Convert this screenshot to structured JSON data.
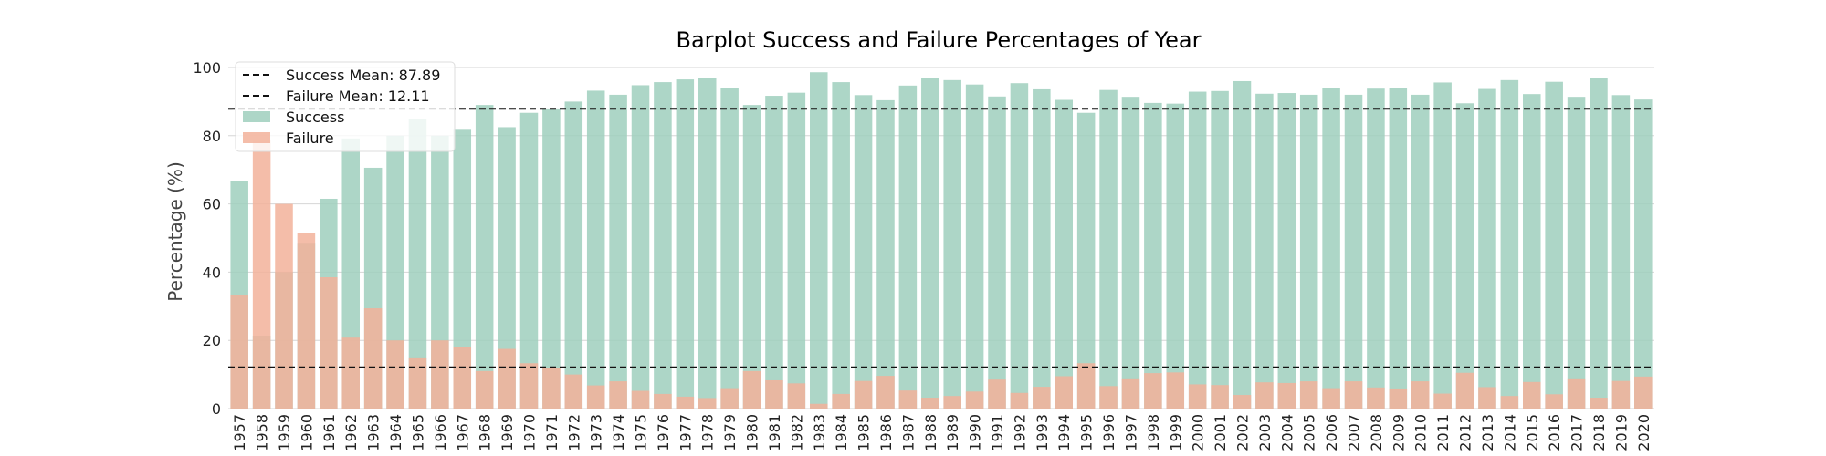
{
  "chart_data": {
    "type": "bar",
    "title": "Barplot Success and Failure Percentages of Year",
    "xlabel": "",
    "ylabel": "Percentage (%)",
    "ylim": [
      0,
      100
    ],
    "yticks": [
      "0",
      "20",
      "40",
      "60",
      "80",
      "100"
    ],
    "grid": true,
    "legend_position": "top-left",
    "colors": {
      "success": "#9fcfbd",
      "failure": "#f2b19a"
    },
    "categories": [
      "1957",
      "1958",
      "1959",
      "1960",
      "1961",
      "1962",
      "1963",
      "1964",
      "1965",
      "1966",
      "1967",
      "1968",
      "1969",
      "1970",
      "1971",
      "1972",
      "1973",
      "1974",
      "1975",
      "1976",
      "1977",
      "1978",
      "1979",
      "1980",
      "1981",
      "1982",
      "1983",
      "1984",
      "1985",
      "1986",
      "1987",
      "1988",
      "1989",
      "1990",
      "1991",
      "1992",
      "1993",
      "1994",
      "1995",
      "1996",
      "1997",
      "1998",
      "1999",
      "2000",
      "2001",
      "2002",
      "2003",
      "2004",
      "2005",
      "2006",
      "2007",
      "2008",
      "2009",
      "2010",
      "2011",
      "2012",
      "2013",
      "2014",
      "2015",
      "2016",
      "2017",
      "2018",
      "2019",
      "2020"
    ],
    "series": [
      {
        "name": "Success",
        "values": [
          66.7,
          21.4,
          40.0,
          48.6,
          61.5,
          79.2,
          70.6,
          80.0,
          85.0,
          80.0,
          82.0,
          89.0,
          82.5,
          86.7,
          88.0,
          90.0,
          93.2,
          92.0,
          94.8,
          95.7,
          96.5,
          96.9,
          94.0,
          89.0,
          91.7,
          92.6,
          98.6,
          95.7,
          91.9,
          90.4,
          94.7,
          96.8,
          96.3,
          95.0,
          91.5,
          95.4,
          93.6,
          90.5,
          86.7,
          93.4,
          91.4,
          89.6,
          89.4,
          92.9,
          93.1,
          96.0,
          92.3,
          92.5,
          92.0,
          94.0,
          92.0,
          93.8,
          94.1,
          92.0,
          95.6,
          89.5,
          93.7,
          96.3,
          92.2,
          95.8,
          91.4,
          96.8,
          91.9,
          90.6
        ]
      },
      {
        "name": "Failure",
        "values": [
          33.3,
          78.6,
          60.0,
          51.4,
          38.5,
          20.8,
          29.4,
          20.0,
          15.0,
          20.0,
          18.0,
          11.0,
          17.5,
          13.3,
          12.0,
          10.0,
          6.8,
          8.0,
          5.2,
          4.3,
          3.5,
          3.1,
          6.0,
          11.0,
          8.3,
          7.4,
          1.4,
          4.3,
          8.1,
          9.6,
          5.3,
          3.2,
          3.7,
          5.0,
          8.5,
          4.6,
          6.4,
          9.5,
          13.3,
          6.6,
          8.6,
          10.4,
          10.6,
          7.1,
          6.9,
          4.0,
          7.7,
          7.5,
          8.0,
          6.0,
          8.0,
          6.2,
          5.9,
          8.0,
          4.4,
          10.5,
          6.3,
          3.7,
          7.8,
          4.2,
          8.6,
          3.2,
          8.1,
          9.4
        ]
      }
    ],
    "reference_lines": [
      {
        "label": "Success Mean: 87.89",
        "value": 87.89
      },
      {
        "label": "Failure Mean: 12.11",
        "value": 12.11
      }
    ]
  }
}
